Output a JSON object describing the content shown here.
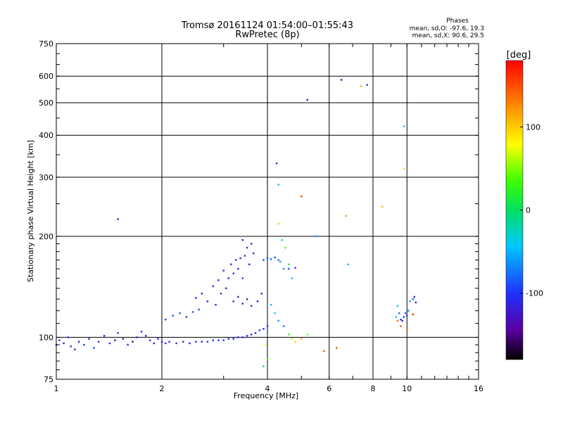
{
  "chart_data": {
    "type": "scatter",
    "title_line1": "Tromsø 20161124 01:54:00–01:55:43",
    "title_line2": "RwPretec (8p)",
    "xlabel": "Frequency [MHz]",
    "ylabel": "Stationary phase Virtual Height [km]",
    "x_scale": "log",
    "y_scale": "log",
    "xlim": [
      1,
      16
    ],
    "ylim": [
      75,
      750
    ],
    "x_ticks": [
      1,
      2,
      4,
      6,
      8,
      10,
      16
    ],
    "x_tick_labels": [
      "1",
      "2",
      "4",
      "6",
      "8",
      "10",
      "16"
    ],
    "y_ticks": [
      75,
      100,
      200,
      300,
      400,
      500,
      600,
      750
    ],
    "y_tick_labels": [
      "75",
      "100",
      "200",
      "300",
      "400",
      "500",
      "600",
      "750"
    ],
    "grid": true,
    "legend": {
      "title": "Phases",
      "line1": "mean, sd,O: -97.6, 19.3",
      "line2": "mean, sd,X:  90.6, 29.5"
    },
    "colorbar": {
      "label": "[deg]",
      "range": [
        -180,
        180
      ],
      "ticks": [
        100,
        0,
        -100
      ],
      "tick_labels": [
        "100",
        "0",
        "-100"
      ]
    },
    "series": [
      {
        "points": [
          [
            1.0,
            95,
            -110
          ],
          [
            1.02,
            98,
            -105
          ],
          [
            1.05,
            96,
            -120
          ],
          [
            1.08,
            100,
            -100
          ],
          [
            1.1,
            94,
            -115
          ],
          [
            1.13,
            92,
            -108
          ],
          [
            1.16,
            97,
            -125
          ],
          [
            1.2,
            95,
            -102
          ],
          [
            1.24,
            99,
            -118
          ],
          [
            1.28,
            93,
            -96
          ],
          [
            1.32,
            97,
            -110
          ],
          [
            1.37,
            101,
            -122
          ],
          [
            1.42,
            96,
            -105
          ],
          [
            1.47,
            98,
            -140
          ],
          [
            1.5,
            103,
            -112
          ],
          [
            1.55,
            99,
            -130
          ],
          [
            1.6,
            95,
            -108
          ],
          [
            1.65,
            97,
            -150
          ],
          [
            1.7,
            100,
            -115
          ],
          [
            1.75,
            104,
            -100
          ],
          [
            1.8,
            101,
            -125
          ],
          [
            1.85,
            98,
            -110
          ],
          [
            1.9,
            96,
            -135
          ],
          [
            1.95,
            99,
            -102
          ],
          [
            2.0,
            97,
            -118
          ],
          [
            2.05,
            96,
            -108
          ],
          [
            2.1,
            97,
            -112
          ],
          [
            2.2,
            96,
            -105
          ],
          [
            2.3,
            97,
            -110
          ],
          [
            2.4,
            96,
            -115
          ],
          [
            2.5,
            97,
            -108
          ],
          [
            2.6,
            97,
            -102
          ],
          [
            2.7,
            97,
            -110
          ],
          [
            2.8,
            98,
            -105
          ],
          [
            2.9,
            98,
            -112
          ],
          [
            3.0,
            98,
            -108
          ],
          [
            3.1,
            99,
            -100
          ],
          [
            3.2,
            99,
            -115
          ],
          [
            3.3,
            100,
            -104
          ],
          [
            3.4,
            100,
            -110
          ],
          [
            3.5,
            101,
            -98
          ],
          [
            3.6,
            102,
            -106
          ],
          [
            3.7,
            103,
            -112
          ],
          [
            3.8,
            105,
            -100
          ],
          [
            3.9,
            106,
            -108
          ],
          [
            4.0,
            108,
            -102
          ],
          [
            2.05,
            113,
            -90
          ],
          [
            2.15,
            116,
            -95
          ],
          [
            2.25,
            118,
            -85
          ],
          [
            2.35,
            115,
            -100
          ],
          [
            2.45,
            119,
            -92
          ],
          [
            2.55,
            121,
            -88
          ],
          [
            2.5,
            131,
            -110
          ],
          [
            2.6,
            135,
            -105
          ],
          [
            2.7,
            128,
            -115
          ],
          [
            2.8,
            142,
            -100
          ],
          [
            2.85,
            125,
            -120
          ],
          [
            2.9,
            148,
            -108
          ],
          [
            2.95,
            135,
            -98
          ],
          [
            3.0,
            158,
            -110
          ],
          [
            3.05,
            140,
            -118
          ],
          [
            3.1,
            150,
            -125
          ],
          [
            3.15,
            165,
            -100
          ],
          [
            3.2,
            155,
            -112
          ],
          [
            3.25,
            170,
            -105
          ],
          [
            3.3,
            160,
            -120
          ],
          [
            3.35,
            172,
            -108
          ],
          [
            3.4,
            150,
            -95
          ],
          [
            3.45,
            175,
            -110
          ],
          [
            3.5,
            185,
            -120
          ],
          [
            3.55,
            165,
            -105
          ],
          [
            3.6,
            190,
            -100
          ],
          [
            3.65,
            178,
            -115
          ],
          [
            3.4,
            195,
            -122
          ],
          [
            3.2,
            128,
            -130
          ],
          [
            3.3,
            132,
            -140
          ],
          [
            3.4,
            126,
            -125
          ],
          [
            3.5,
            130,
            -135
          ],
          [
            3.6,
            124,
            -118
          ],
          [
            3.75,
            128,
            -128
          ],
          [
            3.85,
            135,
            -120
          ],
          [
            3.9,
            170,
            -90
          ],
          [
            4.0,
            172,
            -85
          ],
          [
            4.1,
            171,
            -80
          ],
          [
            4.2,
            173,
            -95
          ],
          [
            4.3,
            170,
            -75
          ],
          [
            4.35,
            168,
            -60
          ],
          [
            4.45,
            160,
            -70
          ],
          [
            4.6,
            160,
            -90
          ],
          [
            4.8,
            161,
            -95
          ],
          [
            4.25,
            330,
            -120
          ],
          [
            4.3,
            285,
            -40
          ],
          [
            4.3,
            218,
            60
          ],
          [
            4.4,
            195,
            -30
          ],
          [
            4.5,
            185,
            40
          ],
          [
            4.6,
            165,
            20
          ],
          [
            4.7,
            150,
            -40
          ],
          [
            4.1,
            125,
            -50
          ],
          [
            4.2,
            118,
            -45
          ],
          [
            4.3,
            112,
            -60
          ],
          [
            4.45,
            108,
            -70
          ],
          [
            4.6,
            102,
            30
          ],
          [
            4.7,
            99,
            60
          ],
          [
            3.95,
            95,
            80
          ],
          [
            4.0,
            86,
            40
          ],
          [
            3.9,
            82,
            -20
          ],
          [
            4.8,
            97,
            100
          ],
          [
            5.0,
            99,
            120
          ],
          [
            5.2,
            102,
            50
          ],
          [
            5.0,
            263,
            160
          ],
          [
            5.2,
            510,
            -130
          ],
          [
            5.5,
            200,
            -60
          ],
          [
            5.8,
            91,
            150
          ],
          [
            6.3,
            93,
            150
          ],
          [
            6.5,
            585,
            -130
          ],
          [
            6.7,
            230,
            120
          ],
          [
            6.8,
            165,
            -50
          ],
          [
            7.4,
            560,
            110
          ],
          [
            7.7,
            565,
            -100
          ],
          [
            8.5,
            245,
            110
          ],
          [
            9.3,
            115,
            -40
          ],
          [
            9.4,
            124,
            -50
          ],
          [
            9.5,
            118,
            -80
          ],
          [
            9.6,
            113,
            -110
          ],
          [
            9.7,
            112,
            -120
          ],
          [
            9.8,
            115,
            -100
          ],
          [
            9.9,
            118,
            -90
          ],
          [
            10.0,
            116,
            -95
          ],
          [
            10.1,
            120,
            -70
          ],
          [
            10.2,
            128,
            -60
          ],
          [
            10.4,
            130,
            -80
          ],
          [
            10.5,
            132,
            -110
          ],
          [
            10.6,
            127,
            -120
          ],
          [
            9.4,
            112,
            140
          ],
          [
            9.6,
            108,
            150
          ],
          [
            10.0,
            105,
            130
          ],
          [
            10.4,
            117,
            170
          ],
          [
            9.8,
            318,
            100
          ],
          [
            9.8,
            425,
            -40
          ],
          [
            1.5,
            225,
            -130
          ]
        ]
      }
    ]
  }
}
